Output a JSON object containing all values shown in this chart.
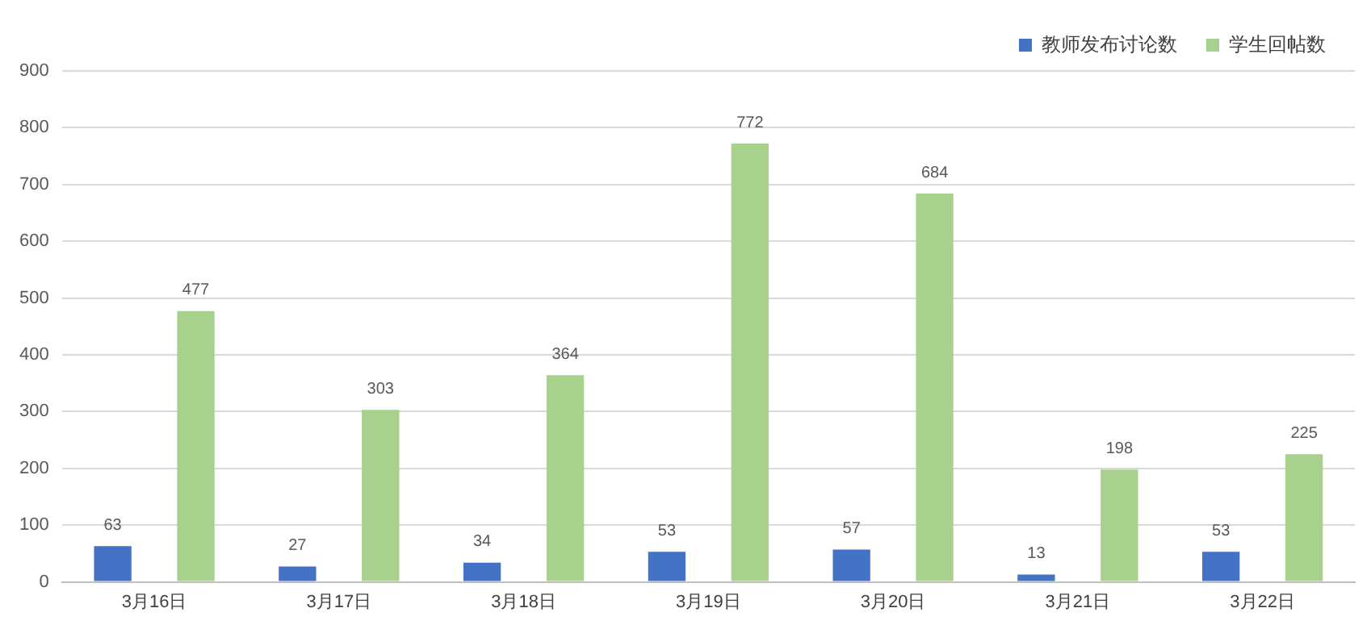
{
  "chart_data": {
    "type": "bar",
    "categories": [
      "3月16日",
      "3月17日",
      "3月18日",
      "3月19日",
      "3月20日",
      "3月21日",
      "3月22日"
    ],
    "series": [
      {
        "name": "教师发布讨论数",
        "color": "#4472c4",
        "values": [
          63,
          27,
          34,
          53,
          57,
          13,
          53
        ]
      },
      {
        "name": "学生回帖数",
        "color": "#a9d18e",
        "values": [
          477,
          303,
          364,
          772,
          684,
          198,
          225
        ]
      }
    ],
    "ylim": [
      0,
      900
    ],
    "yticks": [
      0,
      100,
      200,
      300,
      400,
      500,
      600,
      700,
      800,
      900
    ],
    "grid": "y",
    "legend": "top right",
    "data_labels": true
  }
}
